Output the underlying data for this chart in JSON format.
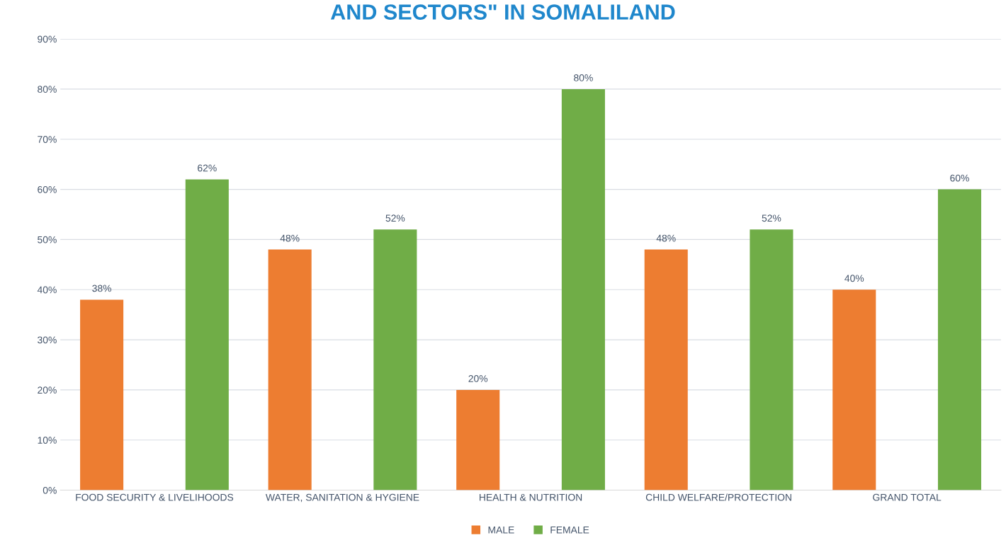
{
  "chart_data": {
    "type": "bar",
    "title": "AND SECTORS\" IN SOMALILAND",
    "categories": [
      "FOOD SECURITY & LIVELIHOODS",
      "WATER, SANITATION & HYGIENE",
      "HEALTH & NUTRITION",
      "CHILD WELFARE/PROTECTION",
      "GRAND TOTAL"
    ],
    "series": [
      {
        "name": "MALE",
        "color": "#ed7d31",
        "values": [
          38,
          48,
          20,
          48,
          40
        ],
        "value_labels": [
          "38%",
          "48%",
          "20%",
          "48%",
          "40%"
        ]
      },
      {
        "name": "FEMALE",
        "color": "#70ad47",
        "values": [
          62,
          52,
          80,
          52,
          60
        ],
        "value_labels": [
          "62%",
          "52%",
          "80%",
          "52%",
          "60%"
        ]
      }
    ],
    "ylim": [
      0,
      90
    ],
    "yticks": [
      {
        "value": 0,
        "label": "0%"
      },
      {
        "value": 10,
        "label": "10%"
      },
      {
        "value": 20,
        "label": "20%"
      },
      {
        "value": 30,
        "label": "30%"
      },
      {
        "value": 40,
        "label": "40%"
      },
      {
        "value": 50,
        "label": "50%"
      },
      {
        "value": 60,
        "label": "60%"
      },
      {
        "value": 70,
        "label": "70%"
      },
      {
        "value": 80,
        "label": "80%"
      },
      {
        "value": 90,
        "label": "90%"
      }
    ],
    "grid": "y",
    "legend": "bottom"
  }
}
